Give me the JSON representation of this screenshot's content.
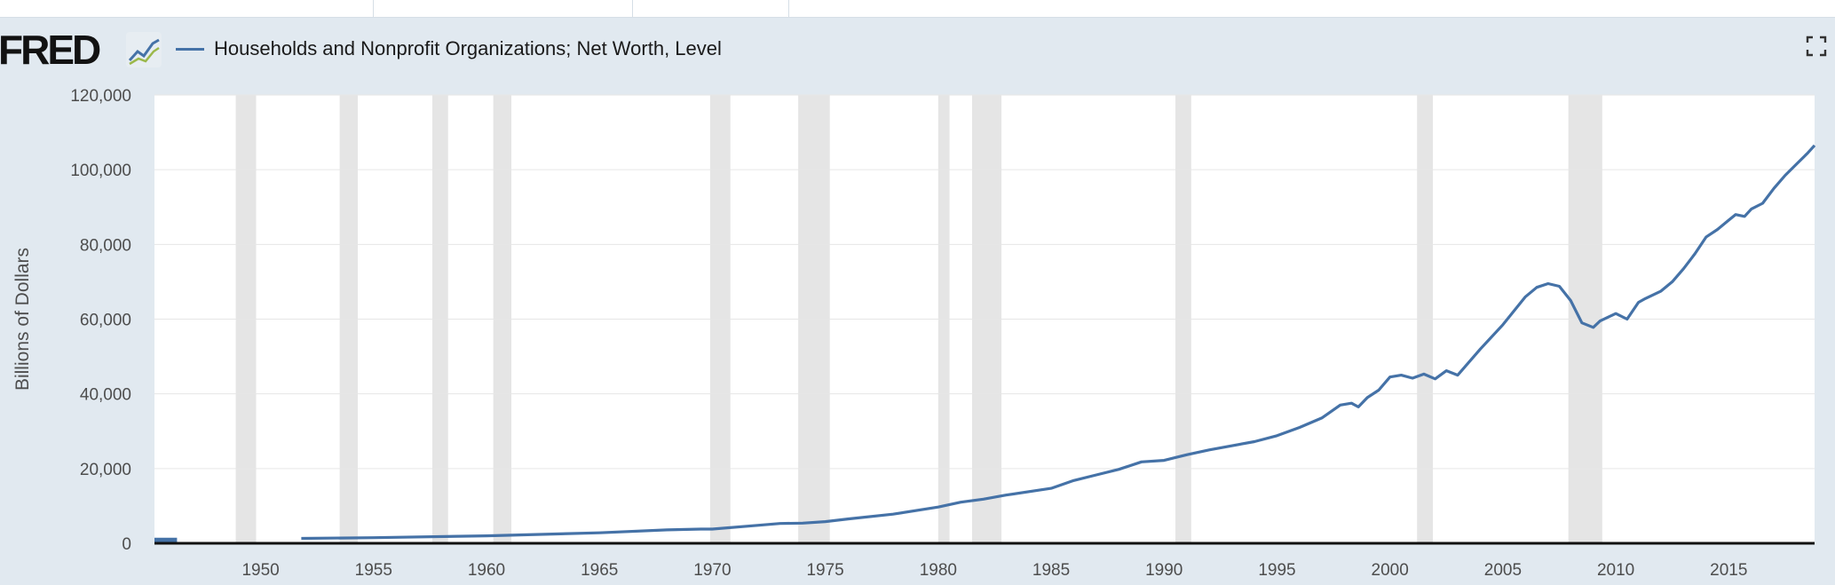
{
  "header": {
    "logo": "FRED",
    "logo_icon": "fred-graph-icon",
    "fullscreen_icon": "fullscreen-icon"
  },
  "colors": {
    "series": "#4572a7",
    "recession": "#e5e5e5",
    "plot_background": "#ffffff",
    "page_background": "#e1e9f0"
  },
  "chart_data": {
    "type": "line",
    "title": "",
    "legend": [
      "Households and Nonprofit Organizations; Net Worth, Level"
    ],
    "xlabel": "",
    "ylabel": "Billions of Dollars",
    "xlim": [
      1945.3,
      2018.8
    ],
    "ylim": [
      0,
      120000
    ],
    "yticks": [
      0,
      20000,
      40000,
      60000,
      80000,
      100000,
      120000
    ],
    "ytick_labels": [
      "0",
      "20,000",
      "40,000",
      "60,000",
      "80,000",
      "100,000",
      "120,000"
    ],
    "xticks": [
      1950,
      1955,
      1960,
      1965,
      1970,
      1975,
      1980,
      1985,
      1990,
      1995,
      2000,
      2005,
      2010,
      2015
    ],
    "xtick_labels": [
      "1950",
      "1955",
      "1960",
      "1965",
      "1970",
      "1975",
      "1980",
      "1985",
      "1990",
      "1995",
      "2000",
      "2005",
      "2010",
      "2015"
    ],
    "grid": true,
    "recessions": [
      [
        1948.9,
        1949.8
      ],
      [
        1953.5,
        1954.3
      ],
      [
        1957.6,
        1958.3
      ],
      [
        1960.3,
        1961.1
      ],
      [
        1969.9,
        1970.8
      ],
      [
        1973.8,
        1975.2
      ],
      [
        1980.0,
        1980.5
      ],
      [
        1981.5,
        1982.8
      ],
      [
        1990.5,
        1991.2
      ],
      [
        2001.2,
        2001.9
      ],
      [
        2007.9,
        2009.4
      ]
    ],
    "series": [
      {
        "name": "Households and Nonprofit Organizations; Net Worth, Level",
        "x": [
          1945.3,
          1946.3,
          1951.8,
          1955,
          1960,
          1965,
          1968,
          1969.5,
          1970,
          1972,
          1973,
          1974,
          1975,
          1976,
          1978,
          1980,
          1981,
          1982,
          1983,
          1985,
          1986,
          1987,
          1988,
          1989,
          1990,
          1991,
          1992,
          1994,
          1995,
          1996,
          1997,
          1997.8,
          1998.3,
          1998.6,
          1999,
          1999.5,
          2000,
          2000.5,
          2001,
          2001.5,
          2002,
          2002.5,
          2003,
          2004,
          2005,
          2006,
          2006.5,
          2007,
          2007.5,
          2008,
          2008.5,
          2009,
          2009.3,
          2010,
          2010.5,
          2011,
          2011.3,
          2012,
          2012.5,
          2013,
          2013.5,
          2014,
          2014.5,
          2015,
          2015.3,
          2015.7,
          2016,
          2016.5,
          2017,
          2017.5,
          2018,
          2018.5,
          2018.8
        ],
        "values": [
          900,
          900,
          1300,
          1500,
          2000,
          2800,
          3600,
          3800,
          3800,
          4800,
          5300,
          5400,
          5800,
          6500,
          7800,
          9700,
          11000,
          11800,
          12900,
          14700,
          16800,
          18300,
          19800,
          21800,
          22200,
          23700,
          25000,
          27200,
          28800,
          31000,
          33600,
          37000,
          37500,
          36500,
          39000,
          41000,
          44500,
          45000,
          44200,
          45300,
          44000,
          46200,
          45000,
          52000,
          58500,
          66000,
          68500,
          69500,
          68800,
          65000,
          59000,
          57800,
          59500,
          61500,
          60000,
          64500,
          65500,
          67500,
          70000,
          73500,
          77500,
          82000,
          84000,
          86500,
          88000,
          87500,
          89500,
          91000,
          95000,
          98500,
          101500,
          104500,
          106500
        ]
      }
    ]
  }
}
